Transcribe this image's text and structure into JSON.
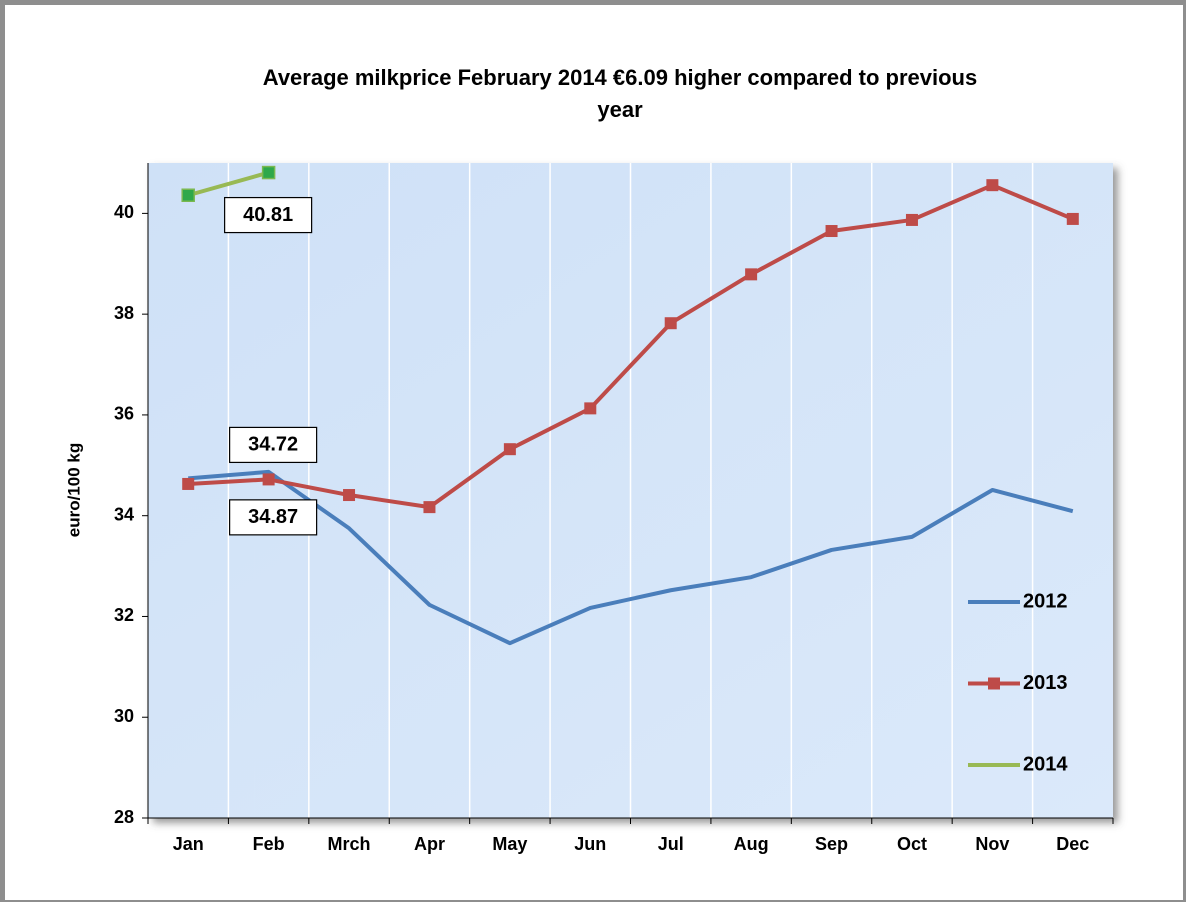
{
  "chart_data": {
    "type": "line",
    "title": "Average milkprice February 2014 €6.09 higher compared to previous year",
    "y_label": "euro/100 kg",
    "categories": [
      "Jan",
      "Feb",
      "Mrch",
      "Apr",
      "May",
      "Jun",
      "Jul",
      "Aug",
      "Sep",
      "Oct",
      "Nov",
      "Dec"
    ],
    "series": [
      {
        "name": "2012",
        "color": "#4a7ebb",
        "marker": "none",
        "values": [
          34.74,
          34.87,
          33.75,
          32.23,
          31.47,
          32.17,
          32.52,
          32.78,
          33.32,
          33.58,
          34.51,
          34.09
        ],
        "value_labels": [
          null,
          "34.87",
          null,
          null,
          null,
          null,
          null,
          null,
          null,
          null,
          null,
          null
        ]
      },
      {
        "name": "2013",
        "color": "#be4b48",
        "marker": "square",
        "values": [
          34.63,
          34.72,
          34.41,
          34.17,
          35.32,
          36.13,
          37.82,
          38.79,
          39.65,
          39.87,
          40.56,
          39.89
        ],
        "value_labels": [
          null,
          "34.72",
          null,
          null,
          null,
          null,
          null,
          null,
          null,
          null,
          null,
          null
        ]
      },
      {
        "name": "2014",
        "color": "#98b954",
        "marker": "square",
        "values": [
          40.36,
          40.81,
          null,
          null,
          null,
          null,
          null,
          null,
          null,
          null,
          null,
          null
        ],
        "value_labels": [
          null,
          "40.81",
          null,
          null,
          null,
          null,
          null,
          null,
          null,
          null,
          null,
          null
        ]
      }
    ],
    "ylim": [
      28,
      41
    ],
    "yticks": [
      28,
      30,
      32,
      34,
      36,
      38,
      40
    ],
    "grid": "vertical",
    "legend": "right"
  }
}
